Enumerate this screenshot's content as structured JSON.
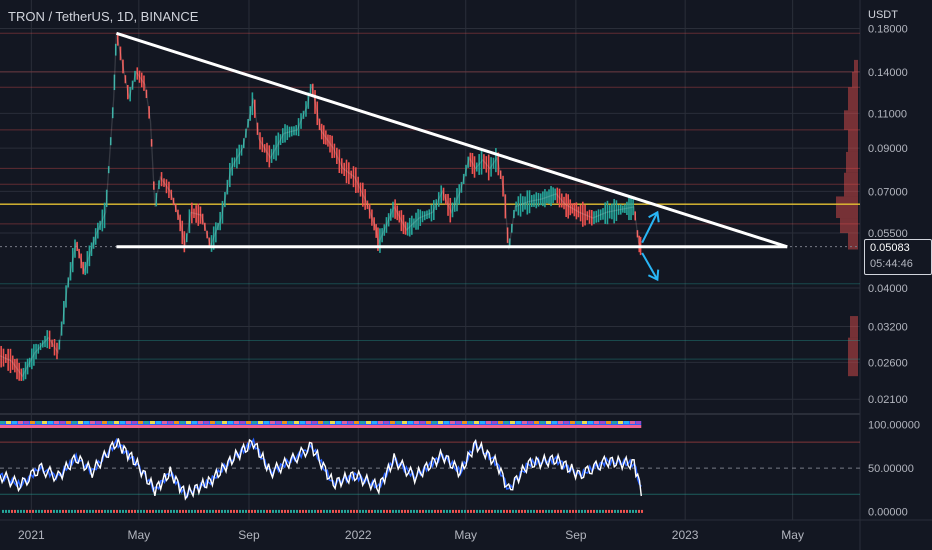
{
  "header": {
    "title": "TRON / TetherUS, 1D, BINANCE",
    "currency": "USDT"
  },
  "price_badge": {
    "price": "0.05083",
    "countdown": "05:44:46"
  },
  "colors": {
    "background": "#131722",
    "up_candle": "#26a69a",
    "down_candle": "#ef5350",
    "trendline": "#ffffff",
    "horizontal_level": "#e5c232",
    "arrow": "#29b6f6",
    "oscillator_main": "#ffffff",
    "oscillator_signal": "#2962ff",
    "grid": "#2a2e39"
  },
  "chart_data": [
    {
      "type": "line",
      "title": "TRON / TetherUS, 1D, BINANCE",
      "scale": "log",
      "ylabel": "USDT",
      "y_ticks": [
        "0.18000",
        "0.14000",
        "0.11000",
        "0.09000",
        "0.07000",
        "0.05500",
        "0.04000",
        "0.03200",
        "0.02600",
        "0.02100"
      ],
      "x_ticks": [
        "2021",
        "May",
        "Sep",
        "2022",
        "May",
        "Sep",
        "2023",
        "May"
      ],
      "ylim": [
        0.0195,
        0.205
      ],
      "xlim": [
        "2020-11-27",
        "2023-07-13"
      ],
      "last_price": 0.05083,
      "series": [
        {
          "values": [
            {
              "x": "2020-11-27",
              "y": 0.027
            },
            {
              "x": "2020-12-10",
              "y": 0.0262
            },
            {
              "x": "2020-12-22",
              "y": 0.024
            },
            {
              "x": "2021-01-05",
              "y": 0.0275
            },
            {
              "x": "2021-01-20",
              "y": 0.03
            },
            {
              "x": "2021-01-31",
              "y": 0.0275
            },
            {
              "x": "2021-02-10",
              "y": 0.04
            },
            {
              "x": "2021-02-20",
              "y": 0.052
            },
            {
              "x": "2021-03-01",
              "y": 0.044
            },
            {
              "x": "2021-03-15",
              "y": 0.055
            },
            {
              "x": "2021-03-25",
              "y": 0.062
            },
            {
              "x": "2021-04-03",
              "y": 0.12
            },
            {
              "x": "2021-04-06",
              "y": 0.175
            },
            {
              "x": "2021-04-12",
              "y": 0.15
            },
            {
              "x": "2021-04-20",
              "y": 0.12
            },
            {
              "x": "2021-04-28",
              "y": 0.14
            },
            {
              "x": "2021-05-08",
              "y": 0.13
            },
            {
              "x": "2021-05-14",
              "y": 0.105
            },
            {
              "x": "2021-05-19",
              "y": 0.064
            },
            {
              "x": "2021-05-25",
              "y": 0.076
            },
            {
              "x": "2021-06-05",
              "y": 0.07
            },
            {
              "x": "2021-06-15",
              "y": 0.06
            },
            {
              "x": "2021-06-22",
              "y": 0.051
            },
            {
              "x": "2021-06-28",
              "y": 0.062
            },
            {
              "x": "2021-07-10",
              "y": 0.061
            },
            {
              "x": "2021-07-20",
              "y": 0.051
            },
            {
              "x": "2021-08-01",
              "y": 0.06
            },
            {
              "x": "2021-08-12",
              "y": 0.08
            },
            {
              "x": "2021-08-25",
              "y": 0.09
            },
            {
              "x": "2021-09-06",
              "y": 0.12
            },
            {
              "x": "2021-09-12",
              "y": 0.095
            },
            {
              "x": "2021-09-25",
              "y": 0.085
            },
            {
              "x": "2021-10-10",
              "y": 0.098
            },
            {
              "x": "2021-10-25",
              "y": 0.1
            },
            {
              "x": "2021-11-05",
              "y": 0.115
            },
            {
              "x": "2021-11-10",
              "y": 0.13
            },
            {
              "x": "2021-11-20",
              "y": 0.1
            },
            {
              "x": "2021-12-04",
              "y": 0.09
            },
            {
              "x": "2021-12-15",
              "y": 0.08
            },
            {
              "x": "2021-12-28",
              "y": 0.076
            },
            {
              "x": "2022-01-10",
              "y": 0.066
            },
            {
              "x": "2022-01-20",
              "y": 0.057
            },
            {
              "x": "2022-01-24",
              "y": 0.052
            },
            {
              "x": "2022-02-10",
              "y": 0.064
            },
            {
              "x": "2022-02-24",
              "y": 0.056
            },
            {
              "x": "2022-03-10",
              "y": 0.06
            },
            {
              "x": "2022-03-25",
              "y": 0.062
            },
            {
              "x": "2022-04-05",
              "y": 0.07
            },
            {
              "x": "2022-04-15",
              "y": 0.062
            },
            {
              "x": "2022-04-25",
              "y": 0.07
            },
            {
              "x": "2022-05-05",
              "y": 0.085
            },
            {
              "x": "2022-05-12",
              "y": 0.08
            },
            {
              "x": "2022-05-20",
              "y": 0.084
            },
            {
              "x": "2022-05-28",
              "y": 0.08
            },
            {
              "x": "2022-06-05",
              "y": 0.085
            },
            {
              "x": "2022-06-13",
              "y": 0.07
            },
            {
              "x": "2022-06-18",
              "y": 0.05
            },
            {
              "x": "2022-06-25",
              "y": 0.064
            },
            {
              "x": "2022-07-10",
              "y": 0.066
            },
            {
              "x": "2022-07-25",
              "y": 0.067
            },
            {
              "x": "2022-08-10",
              "y": 0.069
            },
            {
              "x": "2022-08-20",
              "y": 0.065
            },
            {
              "x": "2022-09-05",
              "y": 0.062
            },
            {
              "x": "2022-09-20",
              "y": 0.06
            },
            {
              "x": "2022-10-05",
              "y": 0.062
            },
            {
              "x": "2022-10-20",
              "y": 0.063
            },
            {
              "x": "2022-11-05",
              "y": 0.064
            },
            {
              "x": "2022-11-10",
              "y": 0.052
            },
            {
              "x": "2022-11-13",
              "y": 0.0508
            }
          ]
        }
      ],
      "annotations": {
        "descending_trendline": [
          {
            "x": "2021-04-06",
            "y": 0.175
          },
          {
            "x": "2023-04-25",
            "y": 0.0508
          }
        ],
        "support_line": [
          {
            "x": "2021-04-06",
            "y": 0.0508
          },
          {
            "x": "2023-04-25",
            "y": 0.0508
          }
        ],
        "horizontal_level": 0.065,
        "arrow_up": [
          {
            "x": "2022-11-14",
            "y": 0.052
          },
          {
            "x": "2022-12-01",
            "y": 0.062
          }
        ],
        "arrow_down": [
          {
            "x": "2022-11-14",
            "y": 0.049
          },
          {
            "x": "2022-12-01",
            "y": 0.042
          }
        ]
      }
    },
    {
      "type": "line",
      "title": "",
      "y_ticks": [
        "100.00000",
        "50.00000",
        "0.00000"
      ],
      "ylim": [
        -5,
        110
      ],
      "reference_level": 50,
      "series": [
        {
          "values": [
            {
              "x": "2020-11-27",
              "y": 42
            },
            {
              "x": "2020-12-20",
              "y": 30
            },
            {
              "x": "2021-01-10",
              "y": 50
            },
            {
              "x": "2021-01-31",
              "y": 40
            },
            {
              "x": "2021-02-20",
              "y": 62
            },
            {
              "x": "2021-03-10",
              "y": 46
            },
            {
              "x": "2021-04-06",
              "y": 80
            },
            {
              "x": "2021-04-25",
              "y": 60
            },
            {
              "x": "2021-05-19",
              "y": 25
            },
            {
              "x": "2021-06-05",
              "y": 45
            },
            {
              "x": "2021-06-22",
              "y": 20
            },
            {
              "x": "2021-07-20",
              "y": 35
            },
            {
              "x": "2021-08-15",
              "y": 62
            },
            {
              "x": "2021-09-06",
              "y": 80
            },
            {
              "x": "2021-09-25",
              "y": 45
            },
            {
              "x": "2021-10-20",
              "y": 60
            },
            {
              "x": "2021-11-10",
              "y": 75
            },
            {
              "x": "2021-12-04",
              "y": 32
            },
            {
              "x": "2021-12-28",
              "y": 42
            },
            {
              "x": "2022-01-24",
              "y": 28
            },
            {
              "x": "2022-02-10",
              "y": 60
            },
            {
              "x": "2022-03-05",
              "y": 40
            },
            {
              "x": "2022-04-05",
              "y": 65
            },
            {
              "x": "2022-04-25",
              "y": 45
            },
            {
              "x": "2022-05-12",
              "y": 78
            },
            {
              "x": "2022-06-05",
              "y": 55
            },
            {
              "x": "2022-06-18",
              "y": 25
            },
            {
              "x": "2022-07-10",
              "y": 55
            },
            {
              "x": "2022-08-10",
              "y": 60
            },
            {
              "x": "2022-09-05",
              "y": 42
            },
            {
              "x": "2022-10-05",
              "y": 58
            },
            {
              "x": "2022-11-05",
              "y": 55
            },
            {
              "x": "2022-11-13",
              "y": 25
            }
          ]
        }
      ]
    }
  ]
}
